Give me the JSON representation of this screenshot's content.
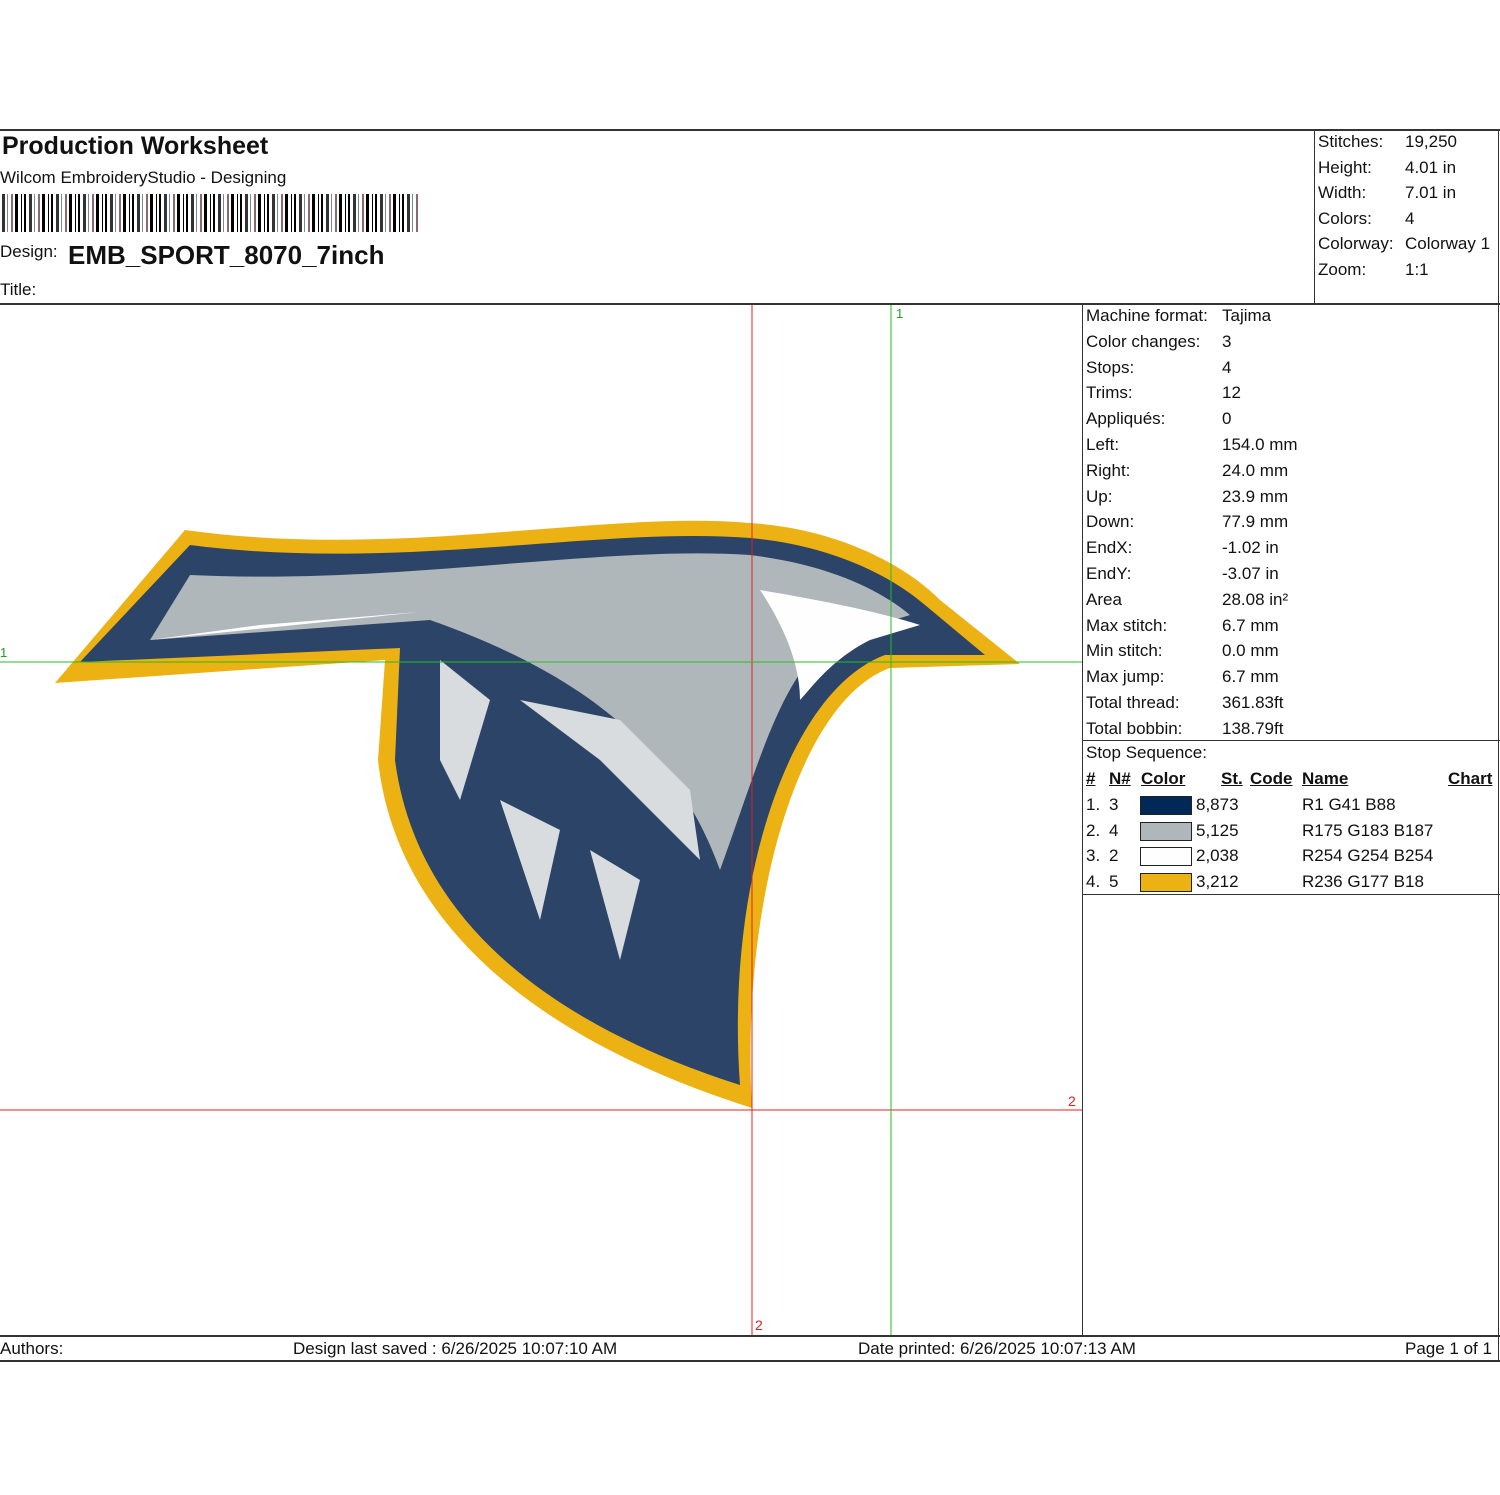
{
  "header": {
    "title": "Production Worksheet",
    "subtitle": "Wilcom EmbroideryStudio - Designing",
    "design_label": "Design:",
    "design_name": "EMB_SPORT_8070_7inch",
    "title_label": "Title:"
  },
  "summary": [
    {
      "label": "Stitches:",
      "value": "19,250"
    },
    {
      "label": "Height:",
      "value": "4.01 in"
    },
    {
      "label": "Width:",
      "value": "7.01 in"
    },
    {
      "label": "Colors:",
      "value": "4"
    },
    {
      "label": "Colorway:",
      "value": "Colorway 1"
    },
    {
      "label": "Zoom:",
      "value": "1:1"
    }
  ],
  "details": [
    {
      "label": "Machine format:",
      "value": "Tajima"
    },
    {
      "label": "Color changes:",
      "value": "3"
    },
    {
      "label": "Stops:",
      "value": "4"
    },
    {
      "label": "Trims:",
      "value": "12"
    },
    {
      "label": "Appliqués:",
      "value": "0"
    },
    {
      "label": "Left:",
      "value": "154.0 mm"
    },
    {
      "label": "Right:",
      "value": "24.0 mm"
    },
    {
      "label": "Up:",
      "value": "23.9 mm"
    },
    {
      "label": "Down:",
      "value": "77.9 mm"
    },
    {
      "label": "EndX:",
      "value": "-1.02 in"
    },
    {
      "label": "EndY:",
      "value": "-3.07 in"
    },
    {
      "label": "Area",
      "value": " 28.08 in²"
    },
    {
      "label": "Max stitch:",
      "value": "6.7 mm"
    },
    {
      "label": "Min stitch:",
      "value": "0.0 mm"
    },
    {
      "label": "Max jump:",
      "value": "6.7 mm"
    },
    {
      "label": "Total thread:",
      "value": "361.83ft"
    },
    {
      "label": "Total bobbin:",
      "value": "138.79ft"
    }
  ],
  "stop_sequence": {
    "title": "Stop Sequence:",
    "columns": [
      "#",
      "N#",
      "Color",
      "St.",
      "Code",
      "Name",
      "Chart"
    ],
    "rows": [
      {
        "num": "1.",
        "n": "3",
        "color": "#012958",
        "stitches": "8,873",
        "name": "R1 G41 B88"
      },
      {
        "num": "2.",
        "n": "4",
        "color": "#afb7bb",
        "stitches": "5,125",
        "name": "R175 G183 B187"
      },
      {
        "num": "3.",
        "n": "2",
        "color": "#fefefe",
        "stitches": "2,038",
        "name": "R254 G254 B254"
      },
      {
        "num": "4.",
        "n": "5",
        "color": "#ecb112",
        "stitches": "3,212",
        "name": "R236 G177 B18"
      }
    ]
  },
  "guides": {
    "green_1": "1",
    "green_2": "1",
    "red_1": "2",
    "red_2": "2"
  },
  "footer": {
    "authors": "Authors:",
    "saved": "Design last saved : 6/26/2025 10:07:10 AM",
    "printed": "Date printed: 6/26/2025 10:07:13 AM",
    "page": "Page 1 of 1"
  }
}
